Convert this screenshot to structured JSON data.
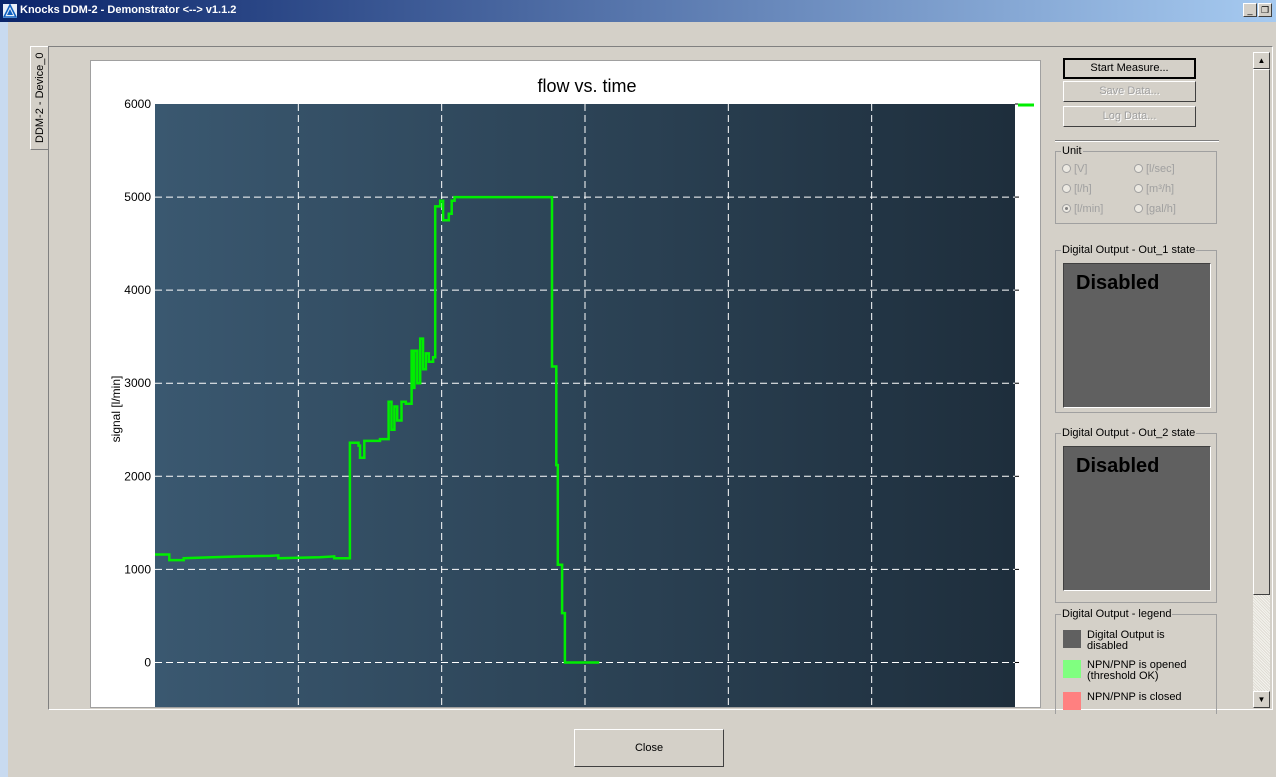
{
  "window": {
    "title": "Knocks DDM-2 - Demonstrator <--> v1.1.2",
    "controls": {
      "minimize": "_",
      "restore": "❐"
    }
  },
  "tab": {
    "label": "DDM-2 - Device_0"
  },
  "chart_data": {
    "type": "line",
    "title": "flow vs. time",
    "xlabel": "",
    "ylabel": "signal [l/min]",
    "ylim": [
      -500,
      6000
    ],
    "yticks": [
      0,
      1000,
      2000,
      3000,
      4000,
      5000,
      6000
    ],
    "x_gridlines": 6,
    "grid": true,
    "legend": "top-right",
    "background": [
      "#3a5870",
      "#1e2e3c"
    ],
    "series": [
      {
        "color": "#00ee00",
        "points": [
          [
            0.0,
            1160
          ],
          [
            1.0,
            1160
          ],
          [
            1.0,
            1100
          ],
          [
            2.0,
            1100
          ],
          [
            2.0,
            1120
          ],
          [
            4.0,
            1130
          ],
          [
            6.0,
            1140
          ],
          [
            8.0,
            1145
          ],
          [
            8.6,
            1150
          ],
          [
            8.6,
            1120
          ],
          [
            11.5,
            1130
          ],
          [
            12.5,
            1140
          ],
          [
            12.5,
            1120
          ],
          [
            13.6,
            1120
          ],
          [
            13.6,
            2360
          ],
          [
            14.2,
            2360
          ],
          [
            14.2,
            2330
          ],
          [
            14.3,
            2330
          ],
          [
            14.3,
            2200
          ],
          [
            14.6,
            2200
          ],
          [
            14.6,
            2380
          ],
          [
            15.7,
            2380
          ],
          [
            15.7,
            2400
          ],
          [
            16.3,
            2400
          ],
          [
            16.3,
            2800
          ],
          [
            16.5,
            2800
          ],
          [
            16.5,
            2500
          ],
          [
            16.7,
            2500
          ],
          [
            16.7,
            2750
          ],
          [
            16.9,
            2750
          ],
          [
            16.9,
            2600
          ],
          [
            17.2,
            2600
          ],
          [
            17.2,
            2800
          ],
          [
            17.5,
            2800
          ],
          [
            17.5,
            2780
          ],
          [
            17.9,
            2780
          ],
          [
            17.9,
            3350
          ],
          [
            18.0,
            3350
          ],
          [
            18.0,
            2950
          ],
          [
            18.1,
            2950
          ],
          [
            18.1,
            3350
          ],
          [
            18.3,
            3350
          ],
          [
            18.3,
            3000
          ],
          [
            18.5,
            3000
          ],
          [
            18.5,
            3480
          ],
          [
            18.7,
            3480
          ],
          [
            18.7,
            3150
          ],
          [
            18.9,
            3150
          ],
          [
            18.9,
            3320
          ],
          [
            19.1,
            3320
          ],
          [
            19.1,
            3230
          ],
          [
            19.4,
            3230
          ],
          [
            19.4,
            3280
          ],
          [
            19.55,
            3280
          ],
          [
            19.55,
            4900
          ],
          [
            19.9,
            4900
          ],
          [
            19.9,
            4960
          ],
          [
            20.1,
            4960
          ],
          [
            20.1,
            4750
          ],
          [
            20.5,
            4750
          ],
          [
            20.5,
            4820
          ],
          [
            20.7,
            4820
          ],
          [
            20.7,
            4960
          ],
          [
            20.9,
            4960
          ],
          [
            20.9,
            5000
          ],
          [
            27.7,
            5000
          ],
          [
            27.7,
            3180
          ],
          [
            28.0,
            3180
          ],
          [
            28.0,
            2120
          ],
          [
            28.1,
            2120
          ],
          [
            28.1,
            1050
          ],
          [
            28.4,
            1050
          ],
          [
            28.4,
            530
          ],
          [
            28.6,
            530
          ],
          [
            28.6,
            0
          ],
          [
            31.0,
            0
          ]
        ],
        "xrange": [
          0,
          60
        ]
      }
    ]
  },
  "sidebar": {
    "start_label": "Start Measure...",
    "save_label": "Save Data...",
    "log_label": "Log Data...",
    "unit": {
      "title": "Unit",
      "options": [
        "[V]",
        "[l/sec]",
        "[l/h]",
        "[m³/h]",
        "[l/min]",
        "[gal/h]"
      ],
      "selected": "[l/min]"
    },
    "out1": {
      "title": "Digital Output - Out_1 state",
      "state": "Disabled"
    },
    "out2": {
      "title": "Digital Output - Out_2 state",
      "state": "Disabled"
    },
    "legend": {
      "title": "Digital Output - legend",
      "items": [
        {
          "color": "#606060",
          "line1": "Digital Output is",
          "line2": "disabled"
        },
        {
          "color": "#80ff80",
          "line1": "NPN/PNP is opened",
          "line2": "(threshold OK)"
        },
        {
          "color": "#ff8080",
          "line1": "NPN/PNP is closed",
          "line2": ""
        }
      ]
    }
  },
  "footer": {
    "close_label": "Close"
  }
}
